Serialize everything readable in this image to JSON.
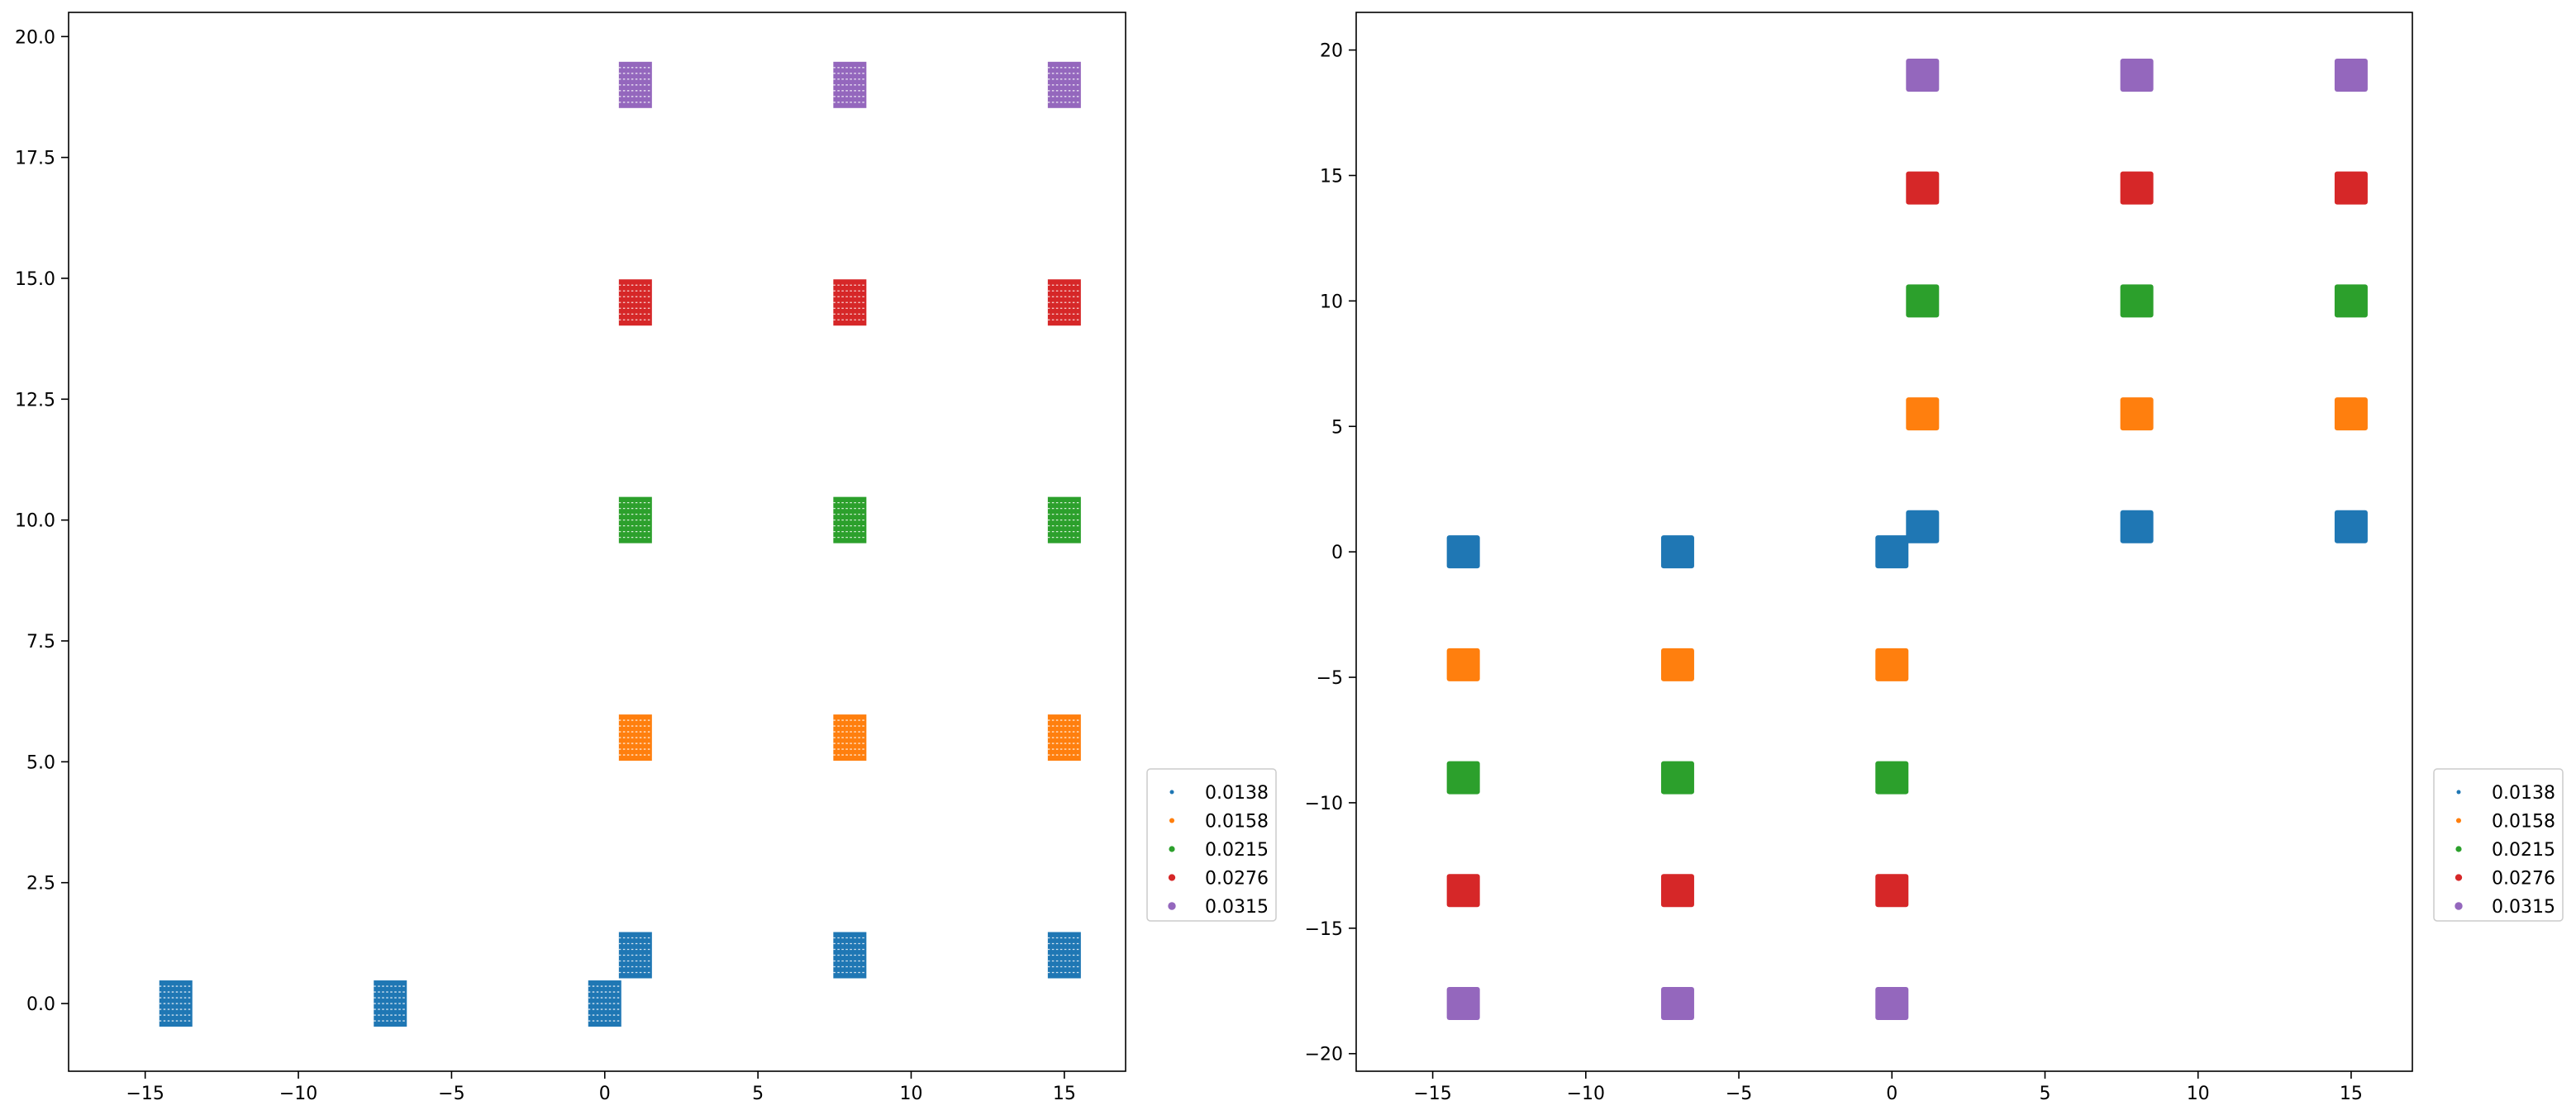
{
  "chart_data": [
    {
      "type": "scatter",
      "title": "",
      "xlabel": "",
      "ylabel": "",
      "xlim": [
        -17.5,
        17
      ],
      "ylim": [
        -1.4,
        20.5
      ],
      "xticks": [
        -15,
        -10,
        -5,
        0,
        5,
        10,
        15
      ],
      "xtick_labels": [
        "−15",
        "−10",
        "−5",
        "0",
        "5",
        "10",
        "15"
      ],
      "yticks": [
        0.0,
        2.5,
        5.0,
        7.5,
        10.0,
        12.5,
        15.0,
        17.5,
        20.0
      ],
      "ytick_labels": [
        "0.0",
        "2.5",
        "5.0",
        "7.5",
        "10.0",
        "12.5",
        "15.0",
        "17.5",
        "20.0"
      ],
      "grid": false,
      "legend_position": "outside-right",
      "marker_style": "dense-dot-cluster",
      "series": [
        {
          "name": "0.0138",
          "color": "#1f77b4",
          "points": [
            [
              -14,
              0
            ],
            [
              -7,
              0
            ],
            [
              0,
              0
            ],
            [
              1,
              1
            ],
            [
              8,
              1
            ],
            [
              15,
              1
            ]
          ]
        },
        {
          "name": "0.0158",
          "color": "#ff7f0e",
          "points": [
            [
              1,
              5.5
            ],
            [
              8,
              5.5
            ],
            [
              15,
              5.5
            ]
          ]
        },
        {
          "name": "0.0215",
          "color": "#2ca02c",
          "points": [
            [
              1,
              10
            ],
            [
              8,
              10
            ],
            [
              15,
              10
            ]
          ]
        },
        {
          "name": "0.0276",
          "color": "#d62728",
          "points": [
            [
              1,
              14.5
            ],
            [
              8,
              14.5
            ],
            [
              15,
              14.5
            ]
          ]
        },
        {
          "name": "0.0315",
          "color": "#9467bd",
          "points": [
            [
              1,
              19
            ],
            [
              8,
              19
            ],
            [
              15,
              19
            ]
          ]
        }
      ]
    },
    {
      "type": "scatter",
      "title": "",
      "xlabel": "",
      "ylabel": "",
      "xlim": [
        -17.5,
        17
      ],
      "ylim": [
        -20.7,
        21.5
      ],
      "xticks": [
        -15,
        -10,
        -5,
        0,
        5,
        10,
        15
      ],
      "xtick_labels": [
        "−15",
        "−10",
        "−5",
        "0",
        "5",
        "10",
        "15"
      ],
      "yticks": [
        -20,
        -15,
        -10,
        -5,
        0,
        5,
        10,
        15,
        20
      ],
      "ytick_labels": [
        "−20",
        "−15",
        "−10",
        "−5",
        "0",
        "5",
        "10",
        "15",
        "20"
      ],
      "grid": false,
      "legend_position": "outside-right",
      "marker_style": "solid-square",
      "series": [
        {
          "name": "0.0138",
          "color": "#1f77b4",
          "points": [
            [
              -14,
              0
            ],
            [
              -7,
              0
            ],
            [
              0,
              0
            ],
            [
              1,
              1
            ],
            [
              8,
              1
            ],
            [
              15,
              1
            ]
          ]
        },
        {
          "name": "0.0158",
          "color": "#ff7f0e",
          "points": [
            [
              -14,
              -4.5
            ],
            [
              -7,
              -4.5
            ],
            [
              0,
              -4.5
            ],
            [
              1,
              5.5
            ],
            [
              8,
              5.5
            ],
            [
              15,
              5.5
            ]
          ]
        },
        {
          "name": "0.0215",
          "color": "#2ca02c",
          "points": [
            [
              -14,
              -9
            ],
            [
              -7,
              -9
            ],
            [
              0,
              -9
            ],
            [
              1,
              10
            ],
            [
              8,
              10
            ],
            [
              15,
              10
            ]
          ]
        },
        {
          "name": "0.0276",
          "color": "#d62728",
          "points": [
            [
              -14,
              -13.5
            ],
            [
              -7,
              -13.5
            ],
            [
              0,
              -13.5
            ],
            [
              1,
              14.5
            ],
            [
              8,
              14.5
            ],
            [
              15,
              14.5
            ]
          ]
        },
        {
          "name": "0.0315",
          "color": "#9467bd",
          "points": [
            [
              -14,
              -18
            ],
            [
              -7,
              -18
            ],
            [
              0,
              -18
            ],
            [
              1,
              19
            ],
            [
              8,
              19
            ],
            [
              15,
              19
            ]
          ]
        }
      ]
    }
  ]
}
